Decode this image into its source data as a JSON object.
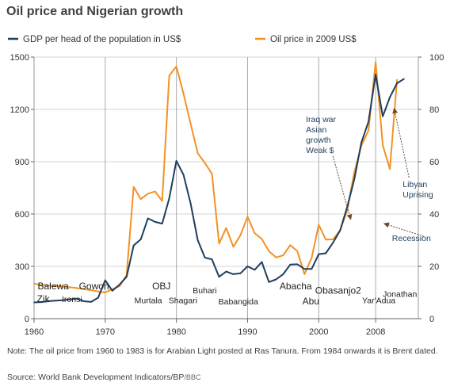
{
  "title": "Oil price and Nigerian growth",
  "note": "Note: The oil price from 1960 to 1983 is for Arabian Light posted at Ras Tanura. From 1984 onwards it is Brent dated.",
  "source": {
    "text": "Source: World Bank Development Indicators/BP",
    "suffix": "/BBC"
  },
  "colors": {
    "gdp": "#1f3e5e",
    "oil": "#f39223",
    "grid": "#d6d6d6",
    "annotation_text": "#1f3e5e",
    "arrow": "#6b4a2a"
  },
  "chart_data": {
    "type": "line",
    "x_axis": {
      "min": 1960,
      "max": 2014,
      "ticks": [
        1960,
        1970,
        1980,
        1990,
        2000,
        2008
      ]
    },
    "y_left": {
      "min": 0,
      "max": 1500,
      "ticks": [
        0,
        300,
        600,
        900,
        1200,
        1500
      ]
    },
    "y_right": {
      "min": 0,
      "max": 100,
      "ticks": [
        0,
        20,
        40,
        60,
        80,
        100
      ]
    },
    "leader_lines": [
      1970,
      1980,
      1990,
      2000,
      2008
    ],
    "legend": {
      "placement": "top"
    },
    "series": [
      {
        "key": "gdp",
        "name": "GDP per head of the population in US$",
        "axis": "left",
        "points": [
          [
            1960,
            93
          ],
          [
            1961,
            95
          ],
          [
            1962,
            100
          ],
          [
            1963,
            103
          ],
          [
            1964,
            106
          ],
          [
            1965,
            110
          ],
          [
            1966,
            115
          ],
          [
            1967,
            100
          ],
          [
            1968,
            96
          ],
          [
            1969,
            120
          ],
          [
            1970,
            220
          ],
          [
            1971,
            160
          ],
          [
            1972,
            195
          ],
          [
            1973,
            240
          ],
          [
            1974,
            420
          ],
          [
            1975,
            455
          ],
          [
            1976,
            575
          ],
          [
            1977,
            555
          ],
          [
            1978,
            545
          ],
          [
            1979,
            690
          ],
          [
            1980,
            905
          ],
          [
            1981,
            825
          ],
          [
            1982,
            660
          ],
          [
            1983,
            450
          ],
          [
            1984,
            350
          ],
          [
            1985,
            340
          ],
          [
            1986,
            240
          ],
          [
            1987,
            270
          ],
          [
            1988,
            255
          ],
          [
            1989,
            260
          ],
          [
            1990,
            300
          ],
          [
            1991,
            280
          ],
          [
            1992,
            325
          ],
          [
            1993,
            210
          ],
          [
            1994,
            225
          ],
          [
            1995,
            255
          ],
          [
            1996,
            310
          ],
          [
            1997,
            312
          ],
          [
            1998,
            285
          ],
          [
            1999,
            285
          ],
          [
            2000,
            370
          ],
          [
            2001,
            375
          ],
          [
            2002,
            435
          ],
          [
            2003,
            505
          ],
          [
            2004,
            640
          ],
          [
            2005,
            800
          ],
          [
            2006,
            1010
          ],
          [
            2007,
            1130
          ],
          [
            2008,
            1400
          ],
          [
            2009,
            1160
          ],
          [
            2010,
            1270
          ],
          [
            2011,
            1350
          ],
          [
            2012,
            1375
          ]
        ]
      },
      {
        "key": "oil",
        "name": "Oil price in 2009 US$",
        "axis": "right",
        "points": [
          [
            1960,
            13.4
          ],
          [
            1961,
            12.8
          ],
          [
            1962,
            12.6
          ],
          [
            1963,
            12.5
          ],
          [
            1964,
            12.3
          ],
          [
            1965,
            12.0
          ],
          [
            1966,
            11.7
          ],
          [
            1967,
            11.3
          ],
          [
            1968,
            10.9
          ],
          [
            1969,
            10.4
          ],
          [
            1970,
            10.0
          ],
          [
            1971,
            11.3
          ],
          [
            1972,
            12.4
          ],
          [
            1973,
            16.7
          ],
          [
            1974,
            50.4
          ],
          [
            1975,
            45.7
          ],
          [
            1976,
            47.8
          ],
          [
            1977,
            48.6
          ],
          [
            1978,
            45.0
          ],
          [
            1979,
            92.9
          ],
          [
            1980,
            96.4
          ],
          [
            1981,
            86.0
          ],
          [
            1982,
            74.5
          ],
          [
            1983,
            63.2
          ],
          [
            1984,
            59.5
          ],
          [
            1985,
            55.4
          ],
          [
            1986,
            28.7
          ],
          [
            1987,
            34.7
          ],
          [
            1988,
            27.5
          ],
          [
            1989,
            31.9
          ],
          [
            1990,
            39.0
          ],
          [
            1991,
            32.7
          ],
          [
            1992,
            30.5
          ],
          [
            1993,
            25.8
          ],
          [
            1994,
            23.4
          ],
          [
            1995,
            24.2
          ],
          [
            1996,
            28.1
          ],
          [
            1997,
            25.8
          ],
          [
            1998,
            17.0
          ],
          [
            1999,
            23.2
          ],
          [
            2000,
            35.9
          ],
          [
            2001,
            30.2
          ],
          [
            2002,
            30.3
          ],
          [
            2003,
            33.7
          ],
          [
            2004,
            41.4
          ],
          [
            2005,
            56.0
          ],
          [
            2006,
            66.1
          ],
          [
            2007,
            72.0
          ],
          [
            2008,
            98.1
          ],
          [
            2009,
            66.3
          ],
          [
            2010,
            57.2
          ],
          [
            2011,
            91.4
          ]
        ]
      }
    ],
    "leaders": [
      {
        "text": "Balewa",
        "x": 1960.5,
        "row": 0
      },
      {
        "text": "Zik",
        "x": 1960.4,
        "row": 2
      },
      {
        "text": "Ironsi",
        "x": 1963.9,
        "row": 2
      },
      {
        "text": "Gowon",
        "x": 1966.3,
        "row": 0
      },
      {
        "text": "OBJ",
        "x": 1976.6,
        "row": 0
      },
      {
        "text": "Buhari",
        "x": 1982.3,
        "row": 0.6
      },
      {
        "text": "Murtala",
        "x": 1974.1,
        "row": 2.2
      },
      {
        "text": "Shagari",
        "x": 1978.9,
        "row": 2.2
      },
      {
        "text": "Babangida",
        "x": 1985.9,
        "row": 2.4
      },
      {
        "text": "Abacha",
        "x": 1994.5,
        "row": 0
      },
      {
        "text": "Abu",
        "x": 1997.7,
        "row": 2.4
      },
      {
        "text": "Obasanjo2",
        "x": 1999.5,
        "row": 0.7
      },
      {
        "text": "Jonathan",
        "x": 2009.0,
        "row": 1.2
      },
      {
        "text": "Yar'Adua",
        "x": 2006.1,
        "row": 2.2
      }
    ],
    "annotations": [
      {
        "lines": [
          "Iraq war",
          "Asian",
          "growth",
          "Weak $"
        ],
        "x": 1998.2,
        "y_left": 1128,
        "arrow_to": [
          2004.5,
          570
        ]
      },
      {
        "lines": [
          "Libyan",
          "Uprising"
        ],
        "x": 2011.8,
        "y_left": 755,
        "arrow_to": [
          2010.6,
          1205
        ]
      },
      {
        "lines": [
          "Recession"
        ],
        "x": 2010.3,
        "y_left": 445,
        "arrow_to": [
          2009.2,
          545
        ]
      }
    ]
  }
}
